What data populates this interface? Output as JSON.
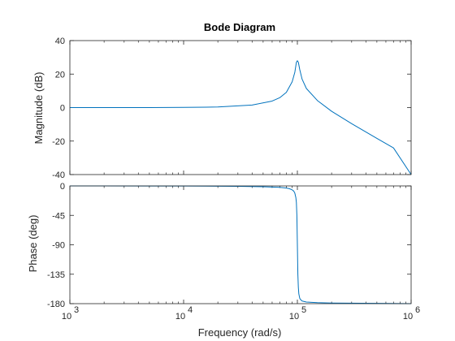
{
  "chart_data": {
    "type": "line",
    "title": "Bode Diagram",
    "xlabel": "Frequency  (rad/s)",
    "x_scale": "log",
    "xlim": [
      1000,
      1000000
    ],
    "x_ticks": [
      {
        "value": 1000,
        "base": "10",
        "exp": "3"
      },
      {
        "value": 10000,
        "base": "10",
        "exp": "4"
      },
      {
        "value": 100000,
        "base": "10",
        "exp": "5"
      },
      {
        "value": 1000000,
        "base": "10",
        "exp": "6"
      }
    ],
    "line_color": "#0072BD",
    "panels": [
      {
        "name": "magnitude",
        "ylabel": "Magnitude (dB)",
        "ylim": [
          -40,
          40
        ],
        "y_ticks": [
          40,
          20,
          0,
          -20,
          -40
        ],
        "series": [
          {
            "x": [
              1000,
              2000,
              5000,
              10000,
              20000,
              40000,
              60000,
              70000,
              80000,
              90000,
              95000,
              98000,
              100000,
              102000,
              105000,
              110000,
              120000,
              150000,
              200000,
              300000,
              500000,
              700000,
              1000000
            ],
            "y": [
              0,
              0,
              0.02,
              0.09,
              0.35,
              1.5,
              3.9,
              5.9,
              9.1,
              15.4,
              21.1,
              27.0,
              28.0,
              27.1,
              22.6,
              17.0,
              11.4,
              4.2,
              -2.2,
              -9.6,
              -18.4,
              -24.1,
              -40
            ]
          }
        ]
      },
      {
        "name": "phase",
        "ylabel": "Phase (deg)",
        "ylim": [
          -180,
          0
        ],
        "y_ticks": [
          0,
          -45,
          -90,
          -135,
          -180
        ],
        "series": [
          {
            "x": [
              1000,
              5000,
              10000,
              30000,
              50000,
              70000,
              80000,
              85000,
              90000,
              93000,
              95000,
              97000,
              98000,
              99000,
              100000,
              101000,
              102000,
              103000,
              105000,
              107000,
              110000,
              120000,
              150000,
              200000,
              500000,
              1000000
            ],
            "y": [
              0,
              -0.1,
              -0.2,
              -0.6,
              -1.2,
              -2.2,
              -3.2,
              -4.2,
              -6.0,
              -8.0,
              -11.0,
              -18.0,
              -25.0,
              -45.0,
              -90.0,
              -135.0,
              -155.0,
              -165.0,
              -172.0,
              -174.0,
              -176.0,
              -177.5,
              -178.5,
              -179.0,
              -179.5,
              -180
            ]
          }
        ]
      }
    ]
  }
}
